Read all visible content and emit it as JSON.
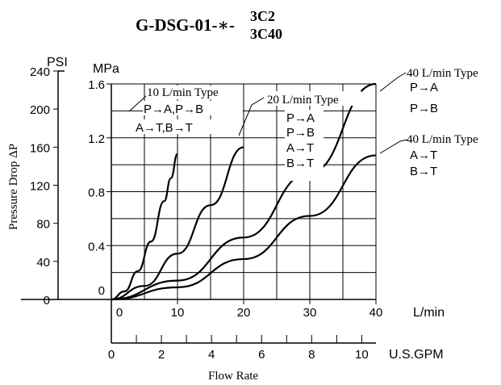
{
  "chart_data": {
    "type": "line",
    "title": {
      "prefix": "G-DSG-01-∗-",
      "upper": "3C2",
      "lower": "3C40"
    },
    "xlabel": "Flow Rate",
    "ylabel": "Pressure Drop ΔP",
    "axes": {
      "psi_unit": "PSI",
      "mpa_unit": "MPa",
      "lpm_unit": "L/min",
      "gpm_unit": "U.S.GPM",
      "psi_ticks": [
        "0",
        "40",
        "80",
        "120",
        "160",
        "200",
        "240"
      ],
      "mpa_ticks": [
        "0",
        "0.4",
        "0.8",
        "1.2",
        "1.6"
      ],
      "lpm_ticks": [
        "0",
        "10",
        "20",
        "30",
        "40"
      ],
      "gpm_ticks": [
        "0",
        "2",
        "4",
        "6",
        "8",
        "10"
      ]
    },
    "xlim_lpm": [
      0,
      40
    ],
    "ylim_mpa": [
      0,
      1.6
    ],
    "grid": true,
    "series": [
      {
        "name": "10 L/min Type",
        "ports": [
          "P→A,P→B",
          "A→T,B→T"
        ],
        "x": [
          0,
          2,
          4,
          6,
          8,
          9,
          10
        ],
        "y": [
          0,
          0.06,
          0.21,
          0.43,
          0.73,
          0.9,
          1.08
        ]
      },
      {
        "name": "20 L/min Type",
        "ports": [
          "P→A",
          "P→B",
          "A→T",
          "B→T"
        ],
        "x": [
          0,
          5,
          10,
          15,
          20
        ],
        "y": [
          0,
          0.1,
          0.34,
          0.7,
          1.13
        ]
      },
      {
        "name": "40 L/min Type",
        "ports": [
          "P→A",
          "P→B"
        ],
        "x": [
          0,
          10,
          20,
          30,
          40
        ],
        "y": [
          0,
          0.14,
          0.46,
          0.94,
          1.6
        ]
      },
      {
        "name": "40 L/min Type",
        "ports": [
          "A→T",
          "B→T"
        ],
        "x": [
          0,
          10,
          20,
          30,
          40
        ],
        "y": [
          0,
          0.09,
          0.3,
          0.62,
          1.07
        ]
      }
    ]
  }
}
